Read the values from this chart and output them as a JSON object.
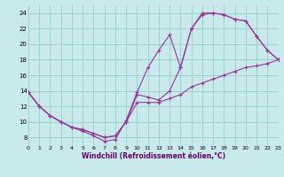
{
  "xlabel": "Windchill (Refroidissement éolien,°C)",
  "bg_color": "#c8eaea",
  "grid_color": "#99cccc",
  "line_color": "#993399",
  "xlim": [
    0,
    23
  ],
  "ylim": [
    7,
    25
  ],
  "yticks": [
    8,
    10,
    12,
    14,
    16,
    18,
    20,
    22,
    24
  ],
  "xticks": [
    0,
    1,
    2,
    3,
    4,
    5,
    6,
    7,
    8,
    9,
    10,
    11,
    12,
    13,
    14,
    15,
    16,
    17,
    18,
    19,
    20,
    21,
    22,
    23
  ],
  "curve1_x": [
    0,
    1,
    2,
    3,
    4,
    5,
    6,
    7,
    8,
    9,
    10,
    11,
    12,
    13,
    14,
    15,
    16,
    17,
    18,
    19,
    20,
    21,
    22,
    23
  ],
  "curve1_y": [
    13.8,
    12.0,
    10.8,
    10.0,
    9.3,
    8.8,
    8.2,
    7.5,
    7.7,
    10.2,
    13.8,
    17.0,
    19.2,
    21.2,
    17.0,
    22.0,
    23.8,
    24.0,
    23.8,
    23.2,
    23.0,
    21.0,
    19.2,
    18.0
  ],
  "curve2_x": [
    0,
    1,
    2,
    3,
    4,
    5,
    6,
    7,
    8,
    9,
    10,
    11,
    12,
    13,
    14,
    15,
    16,
    17,
    18,
    19,
    20,
    21,
    22,
    23
  ],
  "curve2_y": [
    13.8,
    12.0,
    10.8,
    10.0,
    9.3,
    9.0,
    8.5,
    8.0,
    8.2,
    10.0,
    12.5,
    12.5,
    12.5,
    13.0,
    13.5,
    14.5,
    15.0,
    15.5,
    16.0,
    16.5,
    17.0,
    17.2,
    17.5,
    18.0
  ],
  "curve3_x": [
    0,
    1,
    2,
    3,
    4,
    5,
    6,
    7,
    8,
    9,
    10,
    11,
    12,
    13,
    14,
    15,
    16,
    17,
    18,
    19,
    20,
    21,
    22,
    23
  ],
  "curve3_y": [
    13.8,
    12.0,
    10.8,
    10.0,
    9.3,
    9.0,
    8.5,
    8.0,
    8.2,
    10.0,
    13.5,
    13.2,
    12.8,
    14.0,
    17.0,
    22.0,
    24.0,
    24.0,
    23.8,
    23.2,
    23.0,
    21.0,
    19.2,
    18.0
  ]
}
